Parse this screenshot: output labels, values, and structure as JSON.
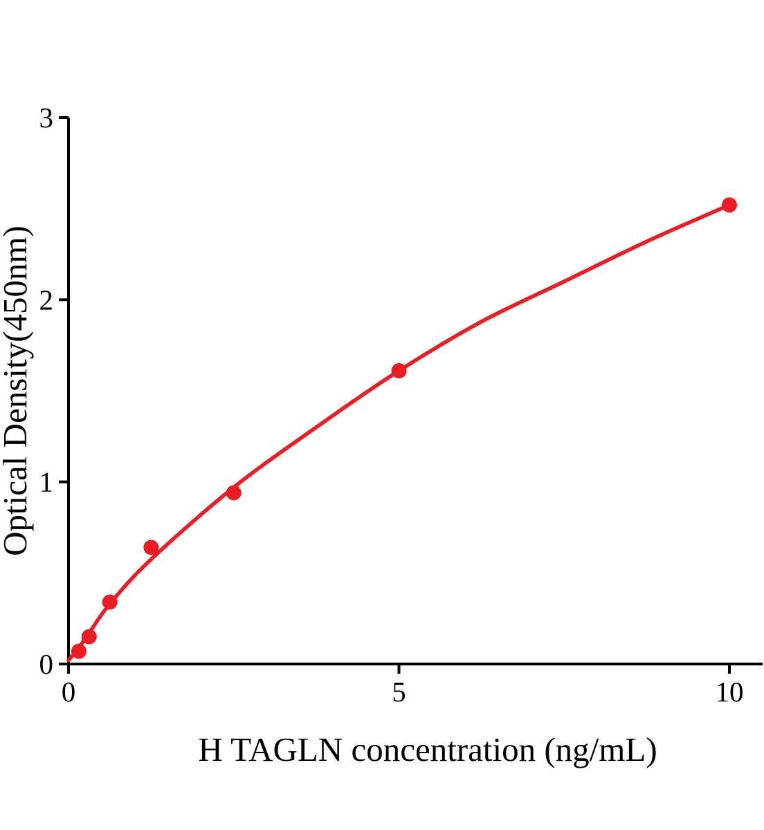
{
  "figure": {
    "background": "#ffffff",
    "accent_color": "#EC1C24",
    "axis_color": "#000000"
  },
  "chart_data": {
    "type": "scatter",
    "title": "",
    "xlabel": "H TAGLN concentration (ng/mL)",
    "ylabel": "Optical Density(450nm)",
    "xlim": [
      0,
      10.5
    ],
    "ylim": [
      0,
      3
    ],
    "x_ticks": [
      0,
      5,
      10
    ],
    "x_tick_labels": [
      "0",
      "5",
      "10"
    ],
    "y_ticks": [
      0,
      1,
      2,
      3
    ],
    "y_tick_labels": [
      "0",
      "1",
      "2",
      "3"
    ],
    "grid": false,
    "legend_position": "none",
    "series": [
      {
        "name": "standard points",
        "type": "scatter",
        "color": "#EC1C24",
        "marker": "circle",
        "x": [
          0.156,
          0.312,
          0.625,
          1.25,
          2.5,
          5,
          10
        ],
        "y": [
          0.07,
          0.15,
          0.34,
          0.64,
          0.94,
          1.61,
          2.52
        ]
      },
      {
        "name": "fitted curve",
        "type": "line",
        "color": "#EC1C24",
        "x": [
          0,
          0.156,
          0.312,
          0.625,
          1.25,
          2.5,
          3.75,
          5,
          6.25,
          7.5,
          8.75,
          10
        ],
        "y": [
          0.02,
          0.09,
          0.17,
          0.33,
          0.575,
          0.97,
          1.3,
          1.61,
          1.88,
          2.1,
          2.32,
          2.52
        ]
      }
    ]
  }
}
